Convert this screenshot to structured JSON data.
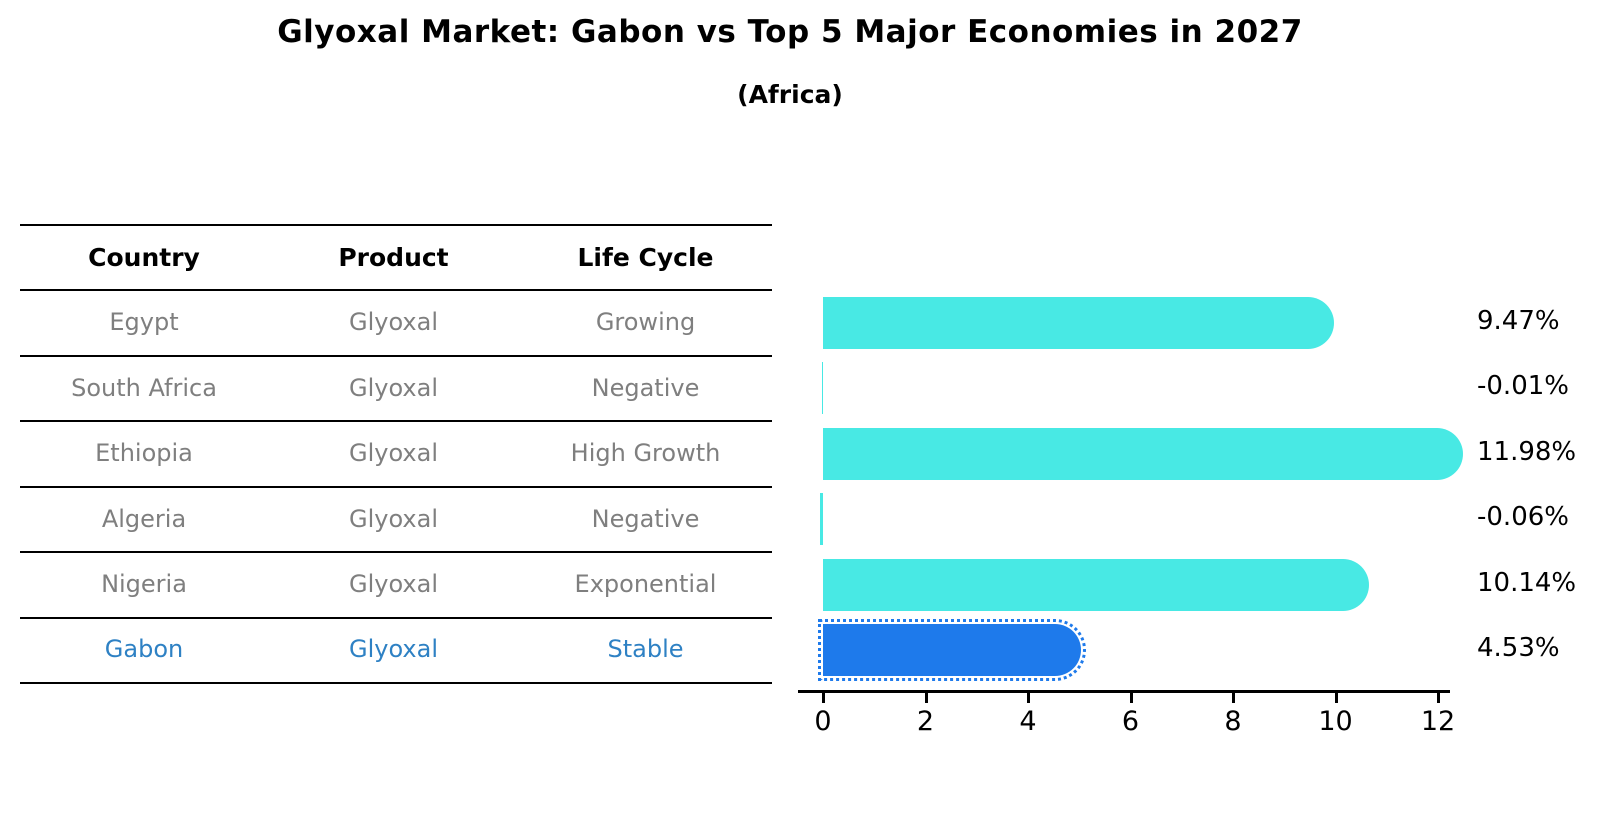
{
  "header": {
    "title": "Glyoxal Market: Gabon vs Top 5 Major Economies in 2027",
    "subtitle": "(Africa)"
  },
  "table": {
    "columns": [
      "Country",
      "Product",
      "Life Cycle"
    ],
    "rows": [
      {
        "country": "Egypt",
        "product": "Glyoxal",
        "life_cycle": "Growing",
        "highlight": false
      },
      {
        "country": "South Africa",
        "product": "Glyoxal",
        "life_cycle": "Negative",
        "highlight": false
      },
      {
        "country": "Ethiopia",
        "product": "Glyoxal",
        "life_cycle": "High Growth",
        "highlight": false
      },
      {
        "country": "Algeria",
        "product": "Glyoxal",
        "life_cycle": "Negative",
        "highlight": false
      },
      {
        "country": "Nigeria",
        "product": "Glyoxal",
        "life_cycle": "Exponential",
        "highlight": false
      },
      {
        "country": "Gabon",
        "product": "Glyoxal",
        "life_cycle": "Stable",
        "highlight": true
      }
    ]
  },
  "chart_data": {
    "type": "bar",
    "orientation": "horizontal",
    "title": "Glyoxal Market: Gabon vs Top 5 Major Economies in 2027",
    "subtitle": "(Africa)",
    "categories": [
      "Egypt",
      "South Africa",
      "Ethiopia",
      "Algeria",
      "Nigeria",
      "Gabon"
    ],
    "values": [
      9.47,
      -0.01,
      11.98,
      -0.06,
      10.14,
      4.53
    ],
    "value_labels": [
      "9.47%",
      "-0.01%",
      "11.98%",
      "-0.06%",
      "10.14%",
      "4.53%"
    ],
    "highlight_category": "Gabon",
    "xlabel": "",
    "ylabel": "",
    "xlim": [
      -0.5,
      12.5
    ],
    "x_ticks": [
      0,
      2,
      4,
      6,
      8,
      10,
      12
    ],
    "grid": false,
    "legend": false,
    "colors": {
      "bar": "#48E9E4",
      "highlight_bar": "#1E7AEB",
      "highlight_text": "#2E81C4",
      "muted_text": "#7F7F7F",
      "axis": "#000000"
    }
  }
}
